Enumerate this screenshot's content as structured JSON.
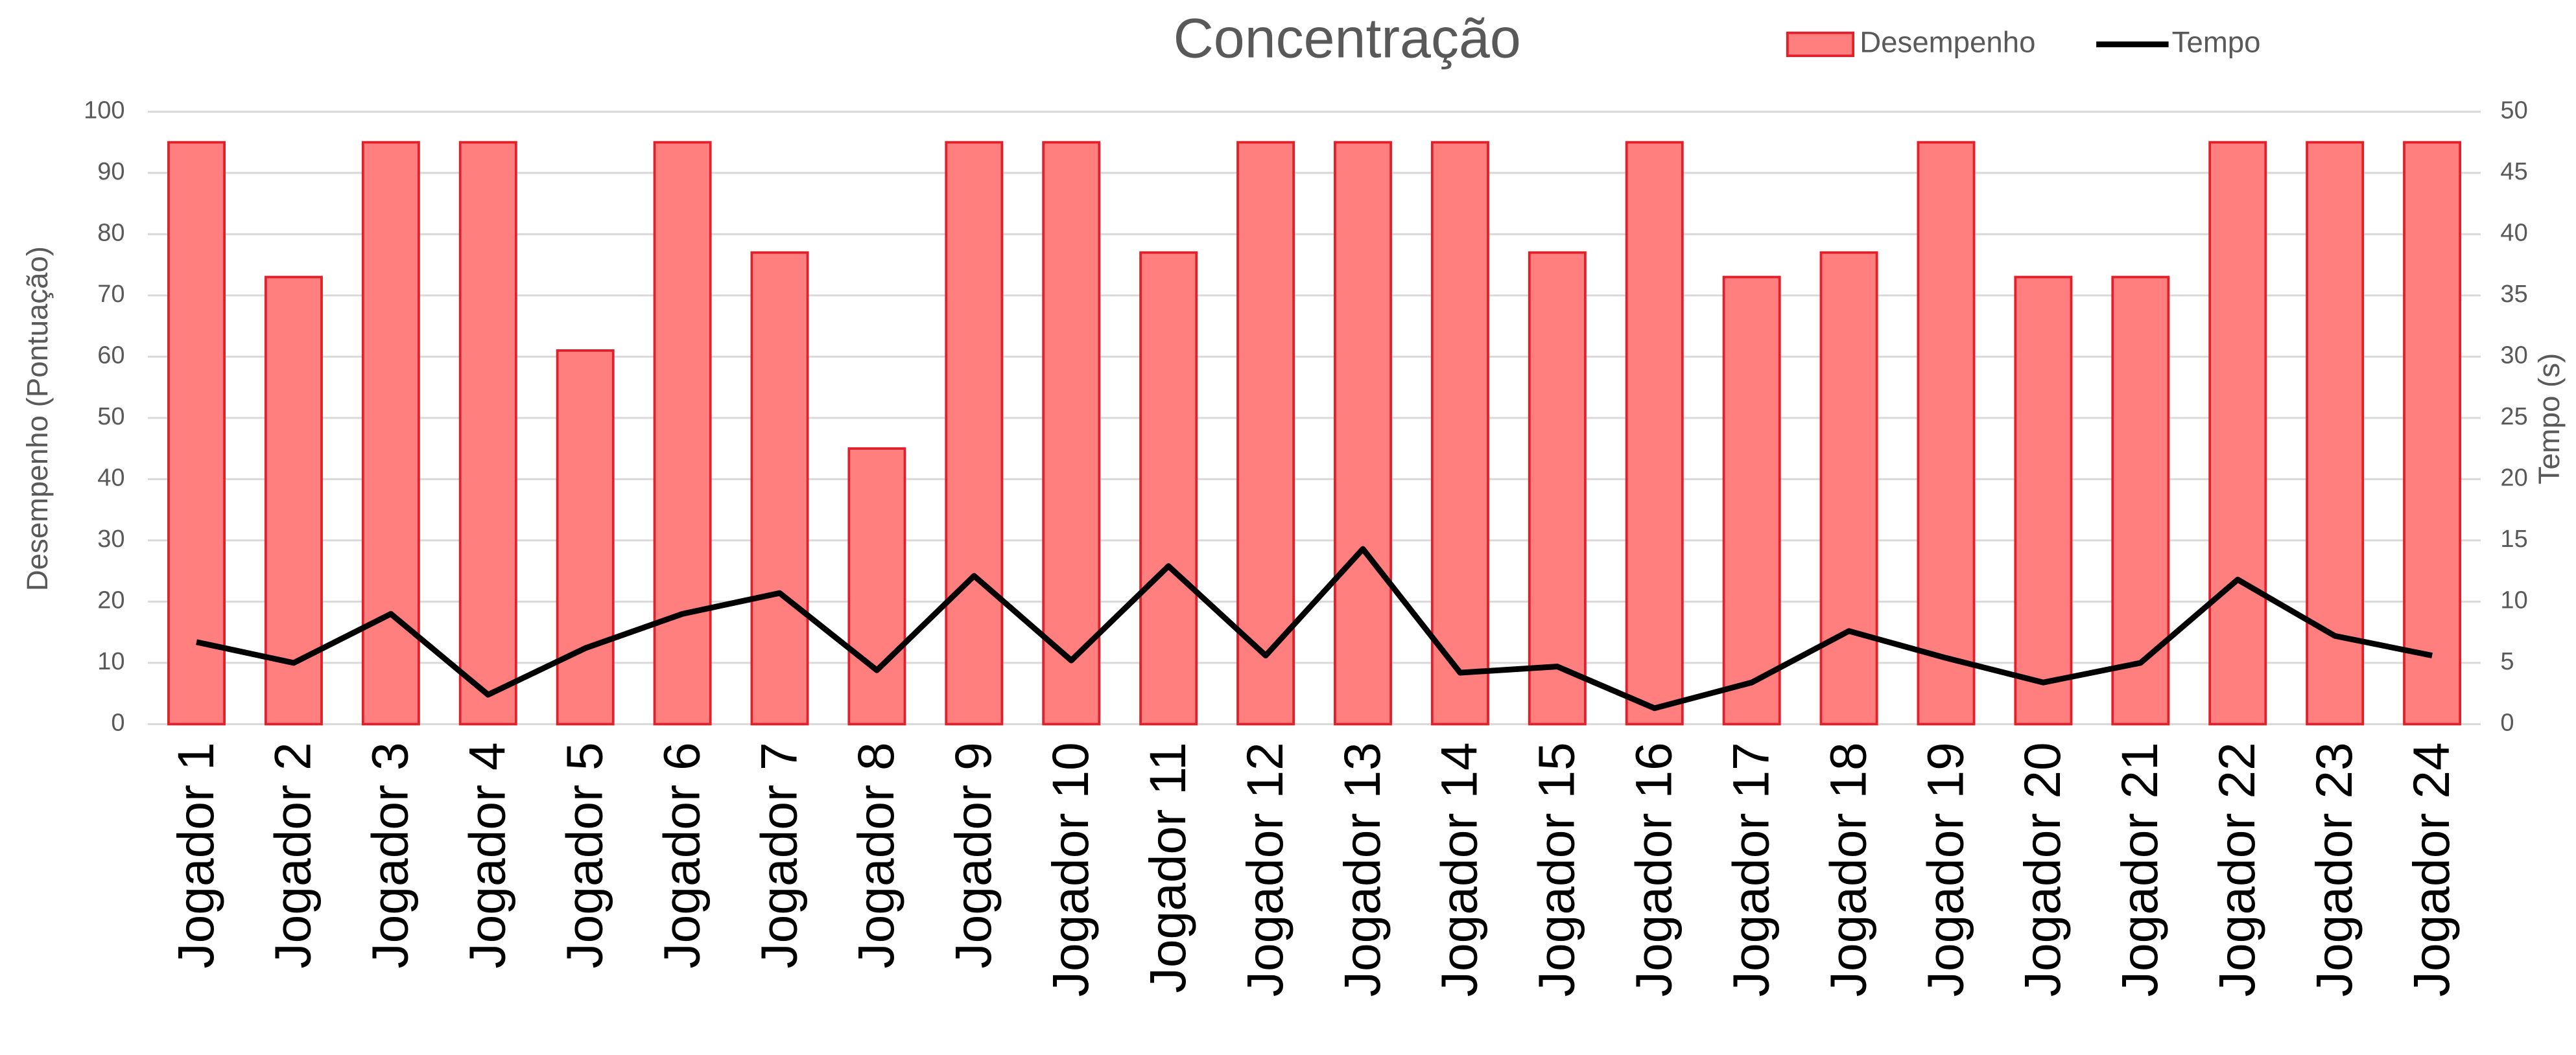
{
  "chart_data": {
    "type": "bar",
    "title": "Concentração",
    "y_label": "Desempenho (Pontuação)",
    "y2_label": "Tempo (s)",
    "categories": [
      "Jogador 1",
      "Jogador 2",
      "Jogador 3",
      "Jogador 4",
      "Jogador 5",
      "Jogador 6",
      "Jogador 7",
      "Jogador 8",
      "Jogador 9",
      "Jogador 10",
      "Jogador 11",
      "Jogador 12",
      "Jogador 13",
      "Jogador 14",
      "Jogador 15",
      "Jogador 16",
      "Jogador 17",
      "Jogador 18",
      "Jogador 19",
      "Jogador 20",
      "Jogador 21",
      "Jogador 22",
      "Jogador 23",
      "Jogador 24"
    ],
    "series": [
      {
        "name": "Desempenho",
        "type": "bar",
        "color": "#ff7f7f",
        "edge_color": "#e0202a",
        "axis": "y",
        "values": [
          95,
          73,
          95,
          95,
          61,
          95,
          77,
          45,
          95,
          95,
          77,
          95,
          95,
          95,
          77,
          95,
          73,
          77,
          95,
          73,
          73,
          95,
          95,
          95
        ]
      },
      {
        "name": "Tempo",
        "type": "line",
        "color": "#000000",
        "axis": "y2",
        "values": [
          6.7,
          5.0,
          9.0,
          2.4,
          6.2,
          9.0,
          10.7,
          4.4,
          12.1,
          5.2,
          12.9,
          5.6,
          14.3,
          4.2,
          4.7,
          1.3,
          3.4,
          7.6,
          5.4,
          3.4,
          5.0,
          11.8,
          7.2,
          5.6
        ]
      }
    ],
    "ylim": [
      0,
      100
    ],
    "yticks": [
      0,
      10,
      20,
      30,
      40,
      50,
      60,
      70,
      80,
      90,
      100
    ],
    "y2lim": [
      0,
      50
    ],
    "y2ticks": [
      0,
      5,
      10,
      15,
      20,
      25,
      30,
      35,
      40,
      45,
      50
    ],
    "grid": true,
    "legend": "top-right"
  }
}
